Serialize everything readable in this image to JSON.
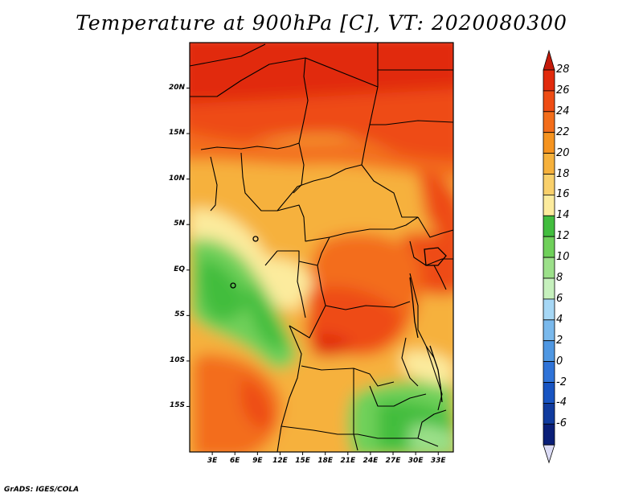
{
  "title": "Temperature at 900hPa [C], VT: 2020080300",
  "credit": "GrADS: IGES/COLA",
  "map": {
    "lon_range": [
      0,
      35
    ],
    "lat_range": [
      -20,
      25
    ],
    "y_ticks": [
      {
        "lat": 20,
        "label": "20N"
      },
      {
        "lat": 15,
        "label": "15N"
      },
      {
        "lat": 10,
        "label": "10N"
      },
      {
        "lat": 5,
        "label": "5N"
      },
      {
        "lat": 0,
        "label": "EQ"
      },
      {
        "lat": -5,
        "label": "5S"
      },
      {
        "lat": -10,
        "label": "10S"
      },
      {
        "lat": -15,
        "label": "15S"
      }
    ],
    "x_ticks": [
      {
        "lon": 3,
        "label": "3E"
      },
      {
        "lon": 6,
        "label": "6E"
      },
      {
        "lon": 9,
        "label": "9E"
      },
      {
        "lon": 12,
        "label": "12E"
      },
      {
        "lon": 15,
        "label": "15E"
      },
      {
        "lon": 18,
        "label": "18E"
      },
      {
        "lon": 21,
        "label": "21E"
      },
      {
        "lon": 24,
        "label": "24E"
      },
      {
        "lon": 27,
        "label": "27E"
      },
      {
        "lon": 30,
        "label": "30E"
      },
      {
        "lon": 33,
        "label": "33E"
      }
    ]
  },
  "colorbar": {
    "labels": [
      "28",
      "26",
      "24",
      "22",
      "20",
      "18",
      "16",
      "14",
      "12",
      "10",
      "8",
      "6",
      "4",
      "2",
      "0",
      "-2",
      "-4",
      "-6"
    ],
    "colors": [
      "#e12a0c",
      "#ee4c14",
      "#f36d1a",
      "#f5931f",
      "#f6b13c",
      "#f9d06b",
      "#fceb9d",
      "#42bd3e",
      "#6fd05a",
      "#9ce08a",
      "#c6f0bd",
      "#a6d7f5",
      "#7ab9ec",
      "#4f97e2",
      "#2f73d8",
      "#1854c2",
      "#103b9e",
      "#0a1f78"
    ],
    "top_arrow_color": "#c41a0a",
    "bottom_arrow_color": "#dcdcf6"
  }
}
